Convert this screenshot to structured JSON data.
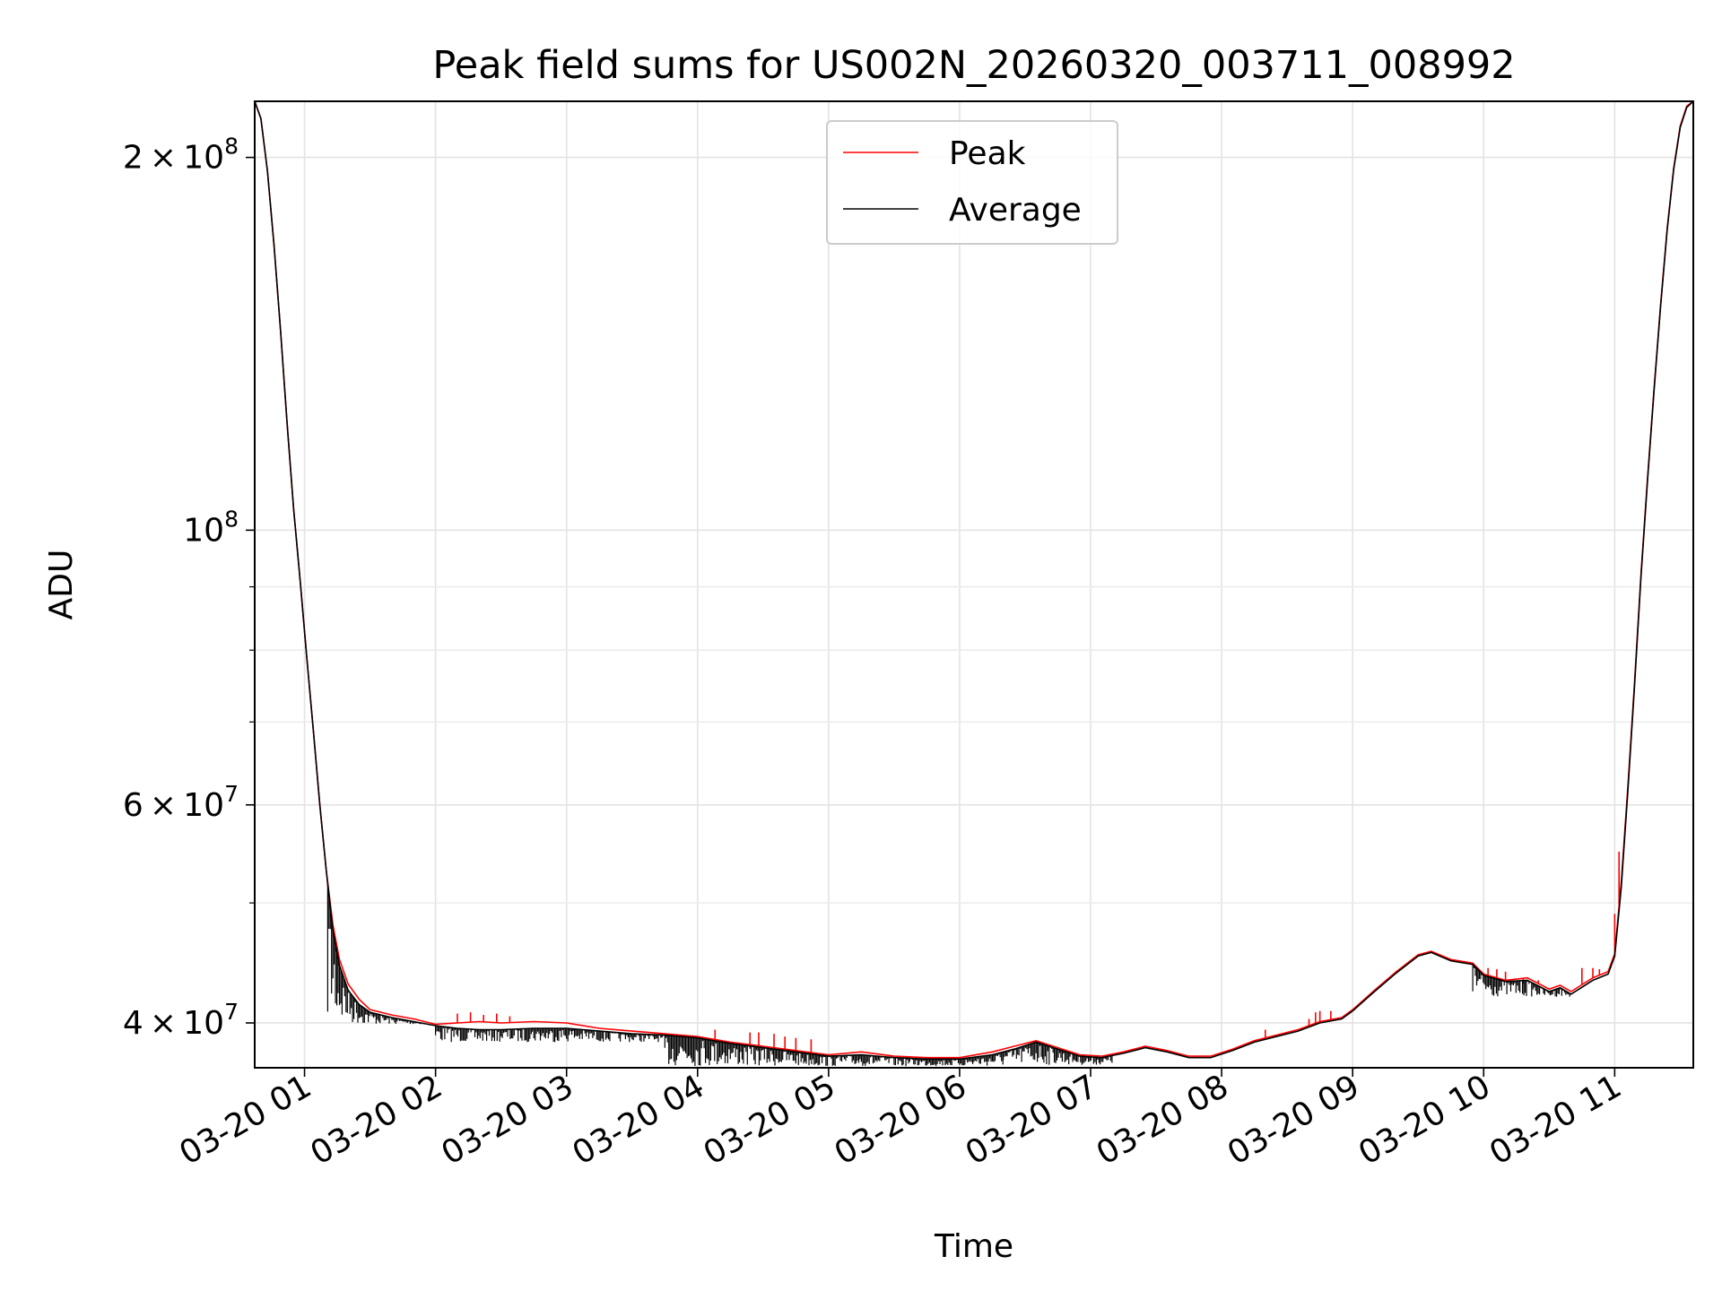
{
  "chart_data": {
    "type": "line",
    "title": "Peak field sums for US002N_20260320_003711_008992",
    "xlabel": "Time",
    "ylabel": "ADU",
    "y_scale": "log",
    "x_range": [
      "2026-03-20 00:37:11",
      "2026-03-20 11:36:00"
    ],
    "ylim": [
      36800000,
      222000000
    ],
    "grid": true,
    "legend_position": "top-center",
    "x_ticks": [
      "03-20 01",
      "03-20 02",
      "03-20 03",
      "03-20 04",
      "03-20 05",
      "03-20 06",
      "03-20 07",
      "03-20 08",
      "03-20 09",
      "03-20 10",
      "03-20 11"
    ],
    "x_tick_times": [
      "2026-03-20 01:00",
      "2026-03-20 02:00",
      "2026-03-20 03:00",
      "2026-03-20 04:00",
      "2026-03-20 05:00",
      "2026-03-20 06:00",
      "2026-03-20 07:00",
      "2026-03-20 08:00",
      "2026-03-20 09:00",
      "2026-03-20 10:00",
      "2026-03-20 11:00"
    ],
    "y_ticks": [
      {
        "value": 40000000,
        "mantissa": "4",
        "exponent": "7"
      },
      {
        "value": 60000000,
        "mantissa": "6",
        "exponent": "7"
      },
      {
        "value": 100000000,
        "mantissa": "",
        "exponent": "8"
      },
      {
        "value": 200000000,
        "mantissa": "2",
        "exponent": "8"
      }
    ],
    "y_minor_ticks": [
      50000000,
      70000000,
      80000000,
      90000000
    ],
    "series": [
      {
        "name": "Peak",
        "color": "#ff0000",
        "x": [
          "00:37:11",
          "00:40",
          "00:43",
          "00:46",
          "00:49",
          "00:52",
          "00:55",
          "00:58",
          "01:01",
          "01:04",
          "01:07",
          "01:10",
          "01:13",
          "01:16",
          "01:20",
          "01:25",
          "01:30",
          "01:40",
          "01:50",
          "02:00",
          "02:10",
          "02:20",
          "02:30",
          "02:45",
          "03:00",
          "03:15",
          "03:30",
          "03:45",
          "04:00",
          "04:15",
          "04:30",
          "04:45",
          "05:00",
          "05:15",
          "05:30",
          "05:45",
          "06:00",
          "06:15",
          "06:25",
          "06:35",
          "06:45",
          "06:55",
          "07:05",
          "07:15",
          "07:25",
          "07:35",
          "07:45",
          "07:55",
          "08:05",
          "08:15",
          "08:25",
          "08:35",
          "08:45",
          "08:55",
          "09:00",
          "09:10",
          "09:20",
          "09:30",
          "09:36",
          "09:45",
          "09:55",
          "10:00",
          "10:10",
          "10:20",
          "10:30",
          "10:35",
          "10:40",
          "10:50",
          "10:57",
          "11:00",
          "11:03",
          "11:06",
          "11:09",
          "11:12",
          "11:15",
          "11:18",
          "11:21",
          "11:24",
          "11:27",
          "11:30",
          "11:33",
          "11:36"
        ],
        "y": [
          222000000,
          215000000,
          195000000,
          170000000,
          145000000,
          122000000,
          104000000,
          91000000,
          79000000,
          69000000,
          60000000,
          53000000,
          48000000,
          45000000,
          43000000,
          41800000,
          41000000,
          40600000,
          40300000,
          39900000,
          40000000,
          40100000,
          40000000,
          40100000,
          40000000,
          39600000,
          39400000,
          39200000,
          39000000,
          38600000,
          38300000,
          38000000,
          37700000,
          37900000,
          37600000,
          37500000,
          37500000,
          37900000,
          38300000,
          38700000,
          38200000,
          37700000,
          37600000,
          37900000,
          38300000,
          38000000,
          37600000,
          37600000,
          38100000,
          38700000,
          39100000,
          39500000,
          40100000,
          40400000,
          41000000,
          42500000,
          44000000,
          45400000,
          45700000,
          45000000,
          44700000,
          43800000,
          43300000,
          43500000,
          42600000,
          42900000,
          42400000,
          43500000,
          44000000,
          45500000,
          52000000,
          62000000,
          75000000,
          92000000,
          110000000,
          130000000,
          152000000,
          175000000,
          196000000,
          212000000,
          220000000,
          222000000
        ],
        "spikes": [
          {
            "x": "02:10",
            "y": 40700000
          },
          {
            "x": "02:16",
            "y": 40800000
          },
          {
            "x": "02:22",
            "y": 40600000
          },
          {
            "x": "02:28",
            "y": 40700000
          },
          {
            "x": "02:34",
            "y": 40500000
          },
          {
            "x": "04:08",
            "y": 39500000
          },
          {
            "x": "04:24",
            "y": 39300000
          },
          {
            "x": "04:28",
            "y": 39300000
          },
          {
            "x": "04:35",
            "y": 39200000
          },
          {
            "x": "04:40",
            "y": 39000000
          },
          {
            "x": "04:45",
            "y": 38900000
          },
          {
            "x": "04:52",
            "y": 38800000
          },
          {
            "x": "08:20",
            "y": 39500000
          },
          {
            "x": "08:40",
            "y": 40300000
          },
          {
            "x": "08:43",
            "y": 40800000
          },
          {
            "x": "08:45",
            "y": 40900000
          },
          {
            "x": "08:50",
            "y": 40900000
          },
          {
            "x": "10:02",
            "y": 44300000
          },
          {
            "x": "10:06",
            "y": 44200000
          },
          {
            "x": "10:10",
            "y": 44000000
          },
          {
            "x": "10:18",
            "y": 43000000
          },
          {
            "x": "10:25",
            "y": 43300000
          },
          {
            "x": "10:45",
            "y": 44300000
          },
          {
            "x": "10:50",
            "y": 44300000
          },
          {
            "x": "10:53",
            "y": 44200000
          },
          {
            "x": "11:00",
            "y": 49000000
          },
          {
            "x": "11:02",
            "y": 55000000
          }
        ]
      },
      {
        "name": "Average",
        "color": "#000000",
        "x": [
          "00:37:11",
          "00:40",
          "00:43",
          "00:46",
          "00:49",
          "00:52",
          "00:55",
          "00:58",
          "01:01",
          "01:04",
          "01:07",
          "01:10",
          "01:13",
          "01:16",
          "01:20",
          "01:25",
          "01:30",
          "01:40",
          "01:50",
          "02:00",
          "02:10",
          "02:20",
          "02:30",
          "02:45",
          "03:00",
          "03:15",
          "03:30",
          "03:45",
          "04:00",
          "04:15",
          "04:30",
          "04:45",
          "05:00",
          "05:15",
          "05:30",
          "05:45",
          "06:00",
          "06:15",
          "06:25",
          "06:35",
          "06:45",
          "06:55",
          "07:05",
          "07:15",
          "07:25",
          "07:35",
          "07:45",
          "07:55",
          "08:05",
          "08:15",
          "08:25",
          "08:35",
          "08:45",
          "08:55",
          "09:00",
          "09:10",
          "09:20",
          "09:30",
          "09:36",
          "09:45",
          "09:55",
          "10:00",
          "10:10",
          "10:20",
          "10:30",
          "10:35",
          "10:40",
          "10:50",
          "10:57",
          "11:00",
          "11:03",
          "11:06",
          "11:09",
          "11:12",
          "11:15",
          "11:18",
          "11:21",
          "11:24",
          "11:27",
          "11:30",
          "11:33",
          "11:36"
        ],
        "y": [
          222000000,
          215000000,
          195000000,
          170000000,
          145000000,
          122000000,
          104000000,
          91000000,
          79000000,
          69000000,
          60000000,
          53000000,
          47500000,
          44500000,
          42500000,
          41400000,
          40800000,
          40400000,
          40100000,
          39800000,
          39600000,
          39500000,
          39500000,
          39600000,
          39600000,
          39400000,
          39200000,
          39100000,
          38900000,
          38500000,
          38200000,
          37900000,
          37600000,
          37700000,
          37500000,
          37400000,
          37400000,
          37700000,
          38100000,
          38600000,
          38100000,
          37600000,
          37500000,
          37800000,
          38200000,
          37900000,
          37500000,
          37500000,
          38000000,
          38600000,
          39000000,
          39400000,
          40000000,
          40300000,
          40900000,
          42400000,
          43900000,
          45300000,
          45600000,
          44900000,
          44600000,
          43700000,
          43200000,
          43300000,
          42400000,
          42700000,
          42200000,
          43300000,
          43800000,
          45300000,
          51500000,
          61500000,
          74500000,
          91500000,
          109500000,
          129500000,
          151500000,
          174500000,
          195500000,
          211500000,
          219500000,
          222000000
        ],
        "noise_segments": [
          {
            "from": "01:10",
            "to": "01:55",
            "min": 39900000
          },
          {
            "from": "02:00",
            "to": "03:45",
            "min": 38600000
          },
          {
            "from": "03:45",
            "to": "06:20",
            "min": 36900000
          },
          {
            "from": "06:20",
            "to": "07:10",
            "min": 37000000
          },
          {
            "from": "09:55",
            "to": "10:40",
            "min": 42000000
          }
        ]
      }
    ]
  }
}
